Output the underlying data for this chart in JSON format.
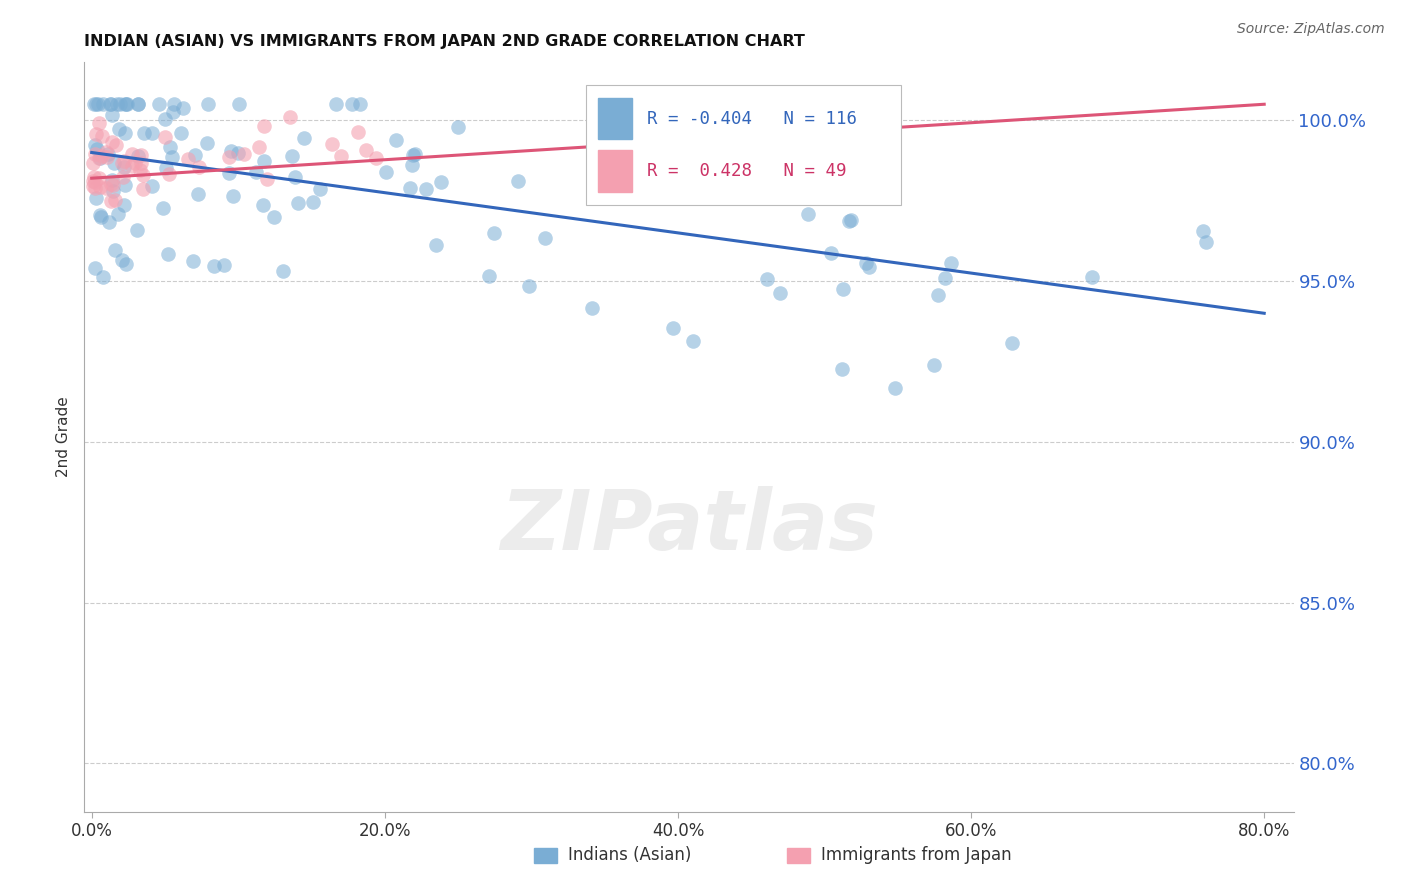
{
  "title": "INDIAN (ASIAN) VS IMMIGRANTS FROM JAPAN 2ND GRADE CORRELATION CHART",
  "source": "Source: ZipAtlas.com",
  "ylabel": "2nd Grade",
  "ytick_labels": [
    "100.0%",
    "95.0%",
    "90.0%",
    "85.0%",
    "80.0%"
  ],
  "ytick_values": [
    1.0,
    0.95,
    0.9,
    0.85,
    0.8
  ],
  "xtick_labels": [
    "0.0%",
    "20.0%",
    "40.0%",
    "60.0%",
    "80.0%"
  ],
  "xtick_values": [
    0.0,
    0.2,
    0.4,
    0.6,
    0.8
  ],
  "xlim": [
    -0.005,
    0.82
  ],
  "ylim": [
    0.785,
    1.018
  ],
  "blue_R": -0.404,
  "blue_N": 116,
  "pink_R": 0.428,
  "pink_N": 49,
  "blue_color": "#7aadd4",
  "pink_color": "#f4a0b0",
  "blue_line_color": "#3366bb",
  "pink_line_color": "#dd5577",
  "legend_label_blue": "Indians (Asian)",
  "legend_label_pink": "Immigrants from Japan",
  "watermark": "ZIPatlas",
  "blue_line_x0": 0.0,
  "blue_line_y0": 0.99,
  "blue_line_x1": 0.8,
  "blue_line_y1": 0.94,
  "pink_line_x0": 0.0,
  "pink_line_y0": 0.982,
  "pink_line_x1": 0.8,
  "pink_line_y1": 1.005
}
